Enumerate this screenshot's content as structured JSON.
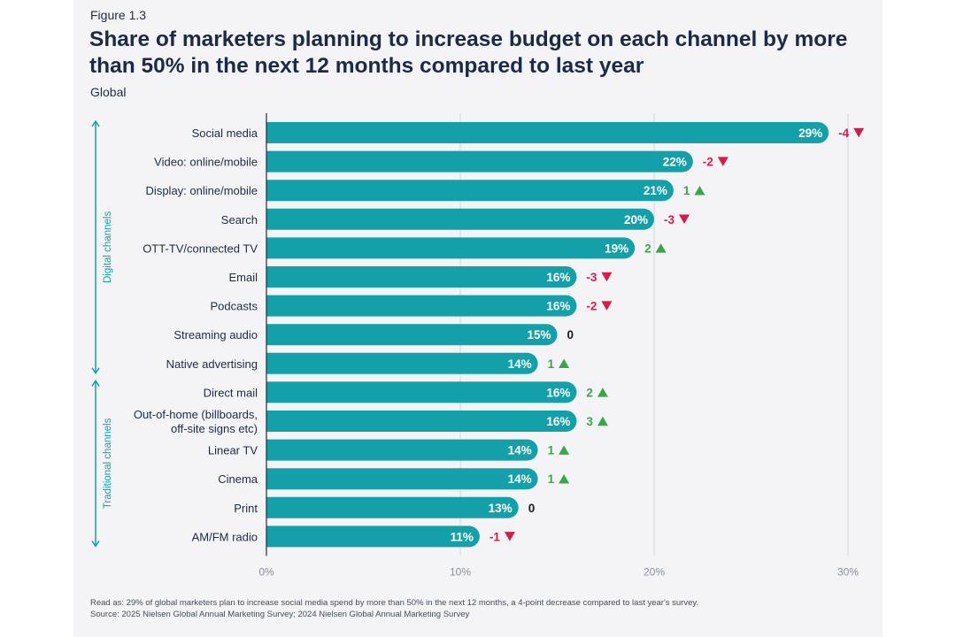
{
  "figure_label": "Figure 1.3",
  "footer": {
    "read_as": "Read as: 29% of global marketers plan to increase social media spend by more than 50% in the next 12 months, a 4-point decrease compared to last year's survey.",
    "source": "Source: 2025 Nielsen Global Annual Marketing Survey; 2024 Nielsen Global Annual Marketing Survey"
  },
  "colors": {
    "bar": "#14a0a8",
    "up": "#3aa64a",
    "down": "#d81b4b",
    "neutral": "#1a1a1a",
    "grid": "#d4d4dc",
    "axis": "#2a2a3a",
    "group": "#14a0a8",
    "label": "#1e2b44"
  },
  "chart_data": {
    "type": "bar",
    "orientation": "horizontal",
    "title": "Share of marketers planning to increase budget on each channel by more than 50% in the next 12 months compared to last year",
    "subtitle": "Global",
    "xlim": [
      0,
      30
    ],
    "xticks": [
      0,
      10,
      20,
      30
    ],
    "xtick_labels": [
      "0%",
      "10%",
      "20%",
      "30%"
    ],
    "grid": true,
    "categories": [
      "Social media",
      "Video: online/mobile",
      "Display: online/mobile",
      "Search",
      "OTT-TV/connected TV",
      "Email",
      "Podcasts",
      "Streaming audio",
      "Native advertising",
      "Direct mail",
      "Out-of-home (billboards,\noff-site signs etc)",
      "Linear TV",
      "Cinema",
      "Print",
      "AM/FM radio"
    ],
    "values": [
      29,
      22,
      21,
      20,
      19,
      16,
      16,
      15,
      14,
      16,
      16,
      14,
      14,
      13,
      11
    ],
    "value_labels": [
      "29%",
      "22%",
      "21%",
      "20%",
      "19%",
      "16%",
      "16%",
      "15%",
      "14%",
      "16%",
      "16%",
      "14%",
      "14%",
      "13%",
      "11%"
    ],
    "changes": [
      -4,
      -2,
      1,
      -3,
      2,
      -3,
      -2,
      0,
      1,
      2,
      3,
      1,
      1,
      0,
      -1
    ],
    "change_labels": [
      "-4",
      "-2",
      "1",
      "-3",
      "2",
      "-3",
      "-2",
      "0",
      "1",
      "2",
      "3",
      "1",
      "1",
      "0",
      "-1"
    ],
    "groups": [
      {
        "name": "Digital channels",
        "start": 0,
        "end": 8
      },
      {
        "name": "Traditional channels",
        "start": 9,
        "end": 14
      }
    ]
  }
}
